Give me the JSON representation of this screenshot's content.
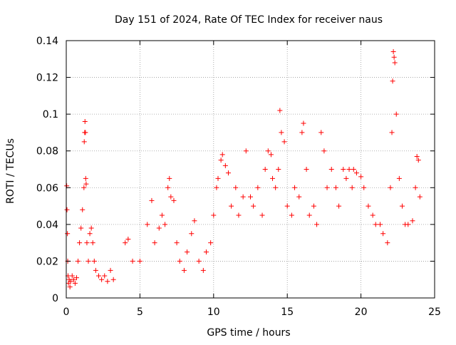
{
  "chart_data": {
    "type": "scatter",
    "title": "Day 151 of 2024, Rate Of TEC Index for receiver naus",
    "xlabel": "GPS time / hours",
    "ylabel": "ROTI / TECUs",
    "xlim": [
      0,
      25
    ],
    "ylim": [
      0,
      0.14
    ],
    "xticks": [
      "0",
      "5",
      "10",
      "15",
      "20",
      "25"
    ],
    "yticks": [
      "0",
      "0.02",
      "0.04",
      "0.06",
      "0.08",
      "0.1",
      "0.12",
      "0.14"
    ],
    "grid": true,
    "marker": "+",
    "series_color": "#ff0000",
    "series": [
      {
        "name": "ROTI",
        "x": [
          0.03,
          0.05,
          0.08,
          0.1,
          0.12,
          0.15,
          0.2,
          0.25,
          0.3,
          0.4,
          0.5,
          0.6,
          0.7,
          0.8,
          0.9,
          1.0,
          1.1,
          1.2,
          1.22,
          1.25,
          1.27,
          1.3,
          1.32,
          1.35,
          1.4,
          1.5,
          1.6,
          1.7,
          1.8,
          1.9,
          2.0,
          2.2,
          2.4,
          2.6,
          2.8,
          3.0,
          3.2,
          4.0,
          4.2,
          4.5,
          5.0,
          5.5,
          5.8,
          6.0,
          6.3,
          6.5,
          6.7,
          6.9,
          7.0,
          7.1,
          7.3,
          7.5,
          7.7,
          8.0,
          8.2,
          8.5,
          8.7,
          9.0,
          9.3,
          9.5,
          9.8,
          10.0,
          10.2,
          10.3,
          10.5,
          10.6,
          10.8,
          11.0,
          11.2,
          11.5,
          11.7,
          12.0,
          12.2,
          12.5,
          12.7,
          13.0,
          13.3,
          13.5,
          13.7,
          13.9,
          14.0,
          14.2,
          14.4,
          14.5,
          14.6,
          14.8,
          15.0,
          15.3,
          15.5,
          15.8,
          16.0,
          16.1,
          16.3,
          16.5,
          16.8,
          17.0,
          17.3,
          17.5,
          17.7,
          18.0,
          18.3,
          18.5,
          18.8,
          19.0,
          19.2,
          19.4,
          19.5,
          19.7,
          20.0,
          20.2,
          20.5,
          20.8,
          21.0,
          21.3,
          21.5,
          21.8,
          22.0,
          22.1,
          22.15,
          22.2,
          22.25,
          22.3,
          22.4,
          22.6,
          22.8,
          23.0,
          23.2,
          23.5,
          23.7,
          23.8,
          23.9,
          24.0
        ],
        "y": [
          0.061,
          0.048,
          0.035,
          0.02,
          0.012,
          0.008,
          0.01,
          0.006,
          0.009,
          0.012,
          0.01,
          0.008,
          0.011,
          0.02,
          0.03,
          0.038,
          0.048,
          0.06,
          0.085,
          0.09,
          0.096,
          0.09,
          0.065,
          0.062,
          0.03,
          0.02,
          0.035,
          0.038,
          0.03,
          0.02,
          0.015,
          0.012,
          0.01,
          0.012,
          0.009,
          0.015,
          0.01,
          0.03,
          0.032,
          0.02,
          0.02,
          0.04,
          0.053,
          0.03,
          0.038,
          0.045,
          0.04,
          0.06,
          0.065,
          0.055,
          0.053,
          0.03,
          0.02,
          0.015,
          0.025,
          0.035,
          0.042,
          0.02,
          0.015,
          0.025,
          0.03,
          0.045,
          0.06,
          0.065,
          0.075,
          0.078,
          0.072,
          0.068,
          0.05,
          0.06,
          0.045,
          0.055,
          0.08,
          0.055,
          0.05,
          0.06,
          0.045,
          0.07,
          0.08,
          0.078,
          0.065,
          0.06,
          0.07,
          0.102,
          0.09,
          0.085,
          0.05,
          0.045,
          0.06,
          0.055,
          0.09,
          0.095,
          0.07,
          0.045,
          0.05,
          0.04,
          0.09,
          0.08,
          0.06,
          0.07,
          0.06,
          0.05,
          0.07,
          0.065,
          0.07,
          0.06,
          0.07,
          0.068,
          0.066,
          0.06,
          0.05,
          0.045,
          0.04,
          0.04,
          0.035,
          0.03,
          0.06,
          0.09,
          0.118,
          0.134,
          0.131,
          0.128,
          0.1,
          0.065,
          0.05,
          0.04,
          0.04,
          0.042,
          0.06,
          0.077,
          0.075,
          0.055
        ]
      }
    ]
  }
}
